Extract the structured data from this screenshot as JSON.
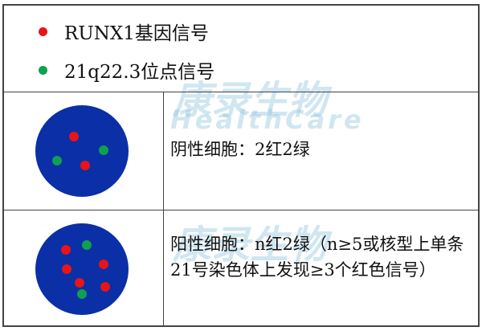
{
  "legend": [
    {
      "label": "RUNX1基因信号",
      "color": "#e8141a"
    },
    {
      "label": "21q22.3位点信号",
      "color": "#10a050"
    }
  ],
  "rows": [
    {
      "description": "阴性细胞：2红2绿",
      "red_signals": 2,
      "green_signals": 2
    },
    {
      "description": "阳性细胞：n红2绿（n≥5或核型上单条21号染色体上发现≥3个红色信号）",
      "red_signals": 6,
      "green_signals": 2
    }
  ],
  "watermark": {
    "cn": "康录生物",
    "en": "HealthCare"
  },
  "colors": {
    "nucleus": "#0a2fa6",
    "red": "#e8141a",
    "green": "#10a050"
  }
}
